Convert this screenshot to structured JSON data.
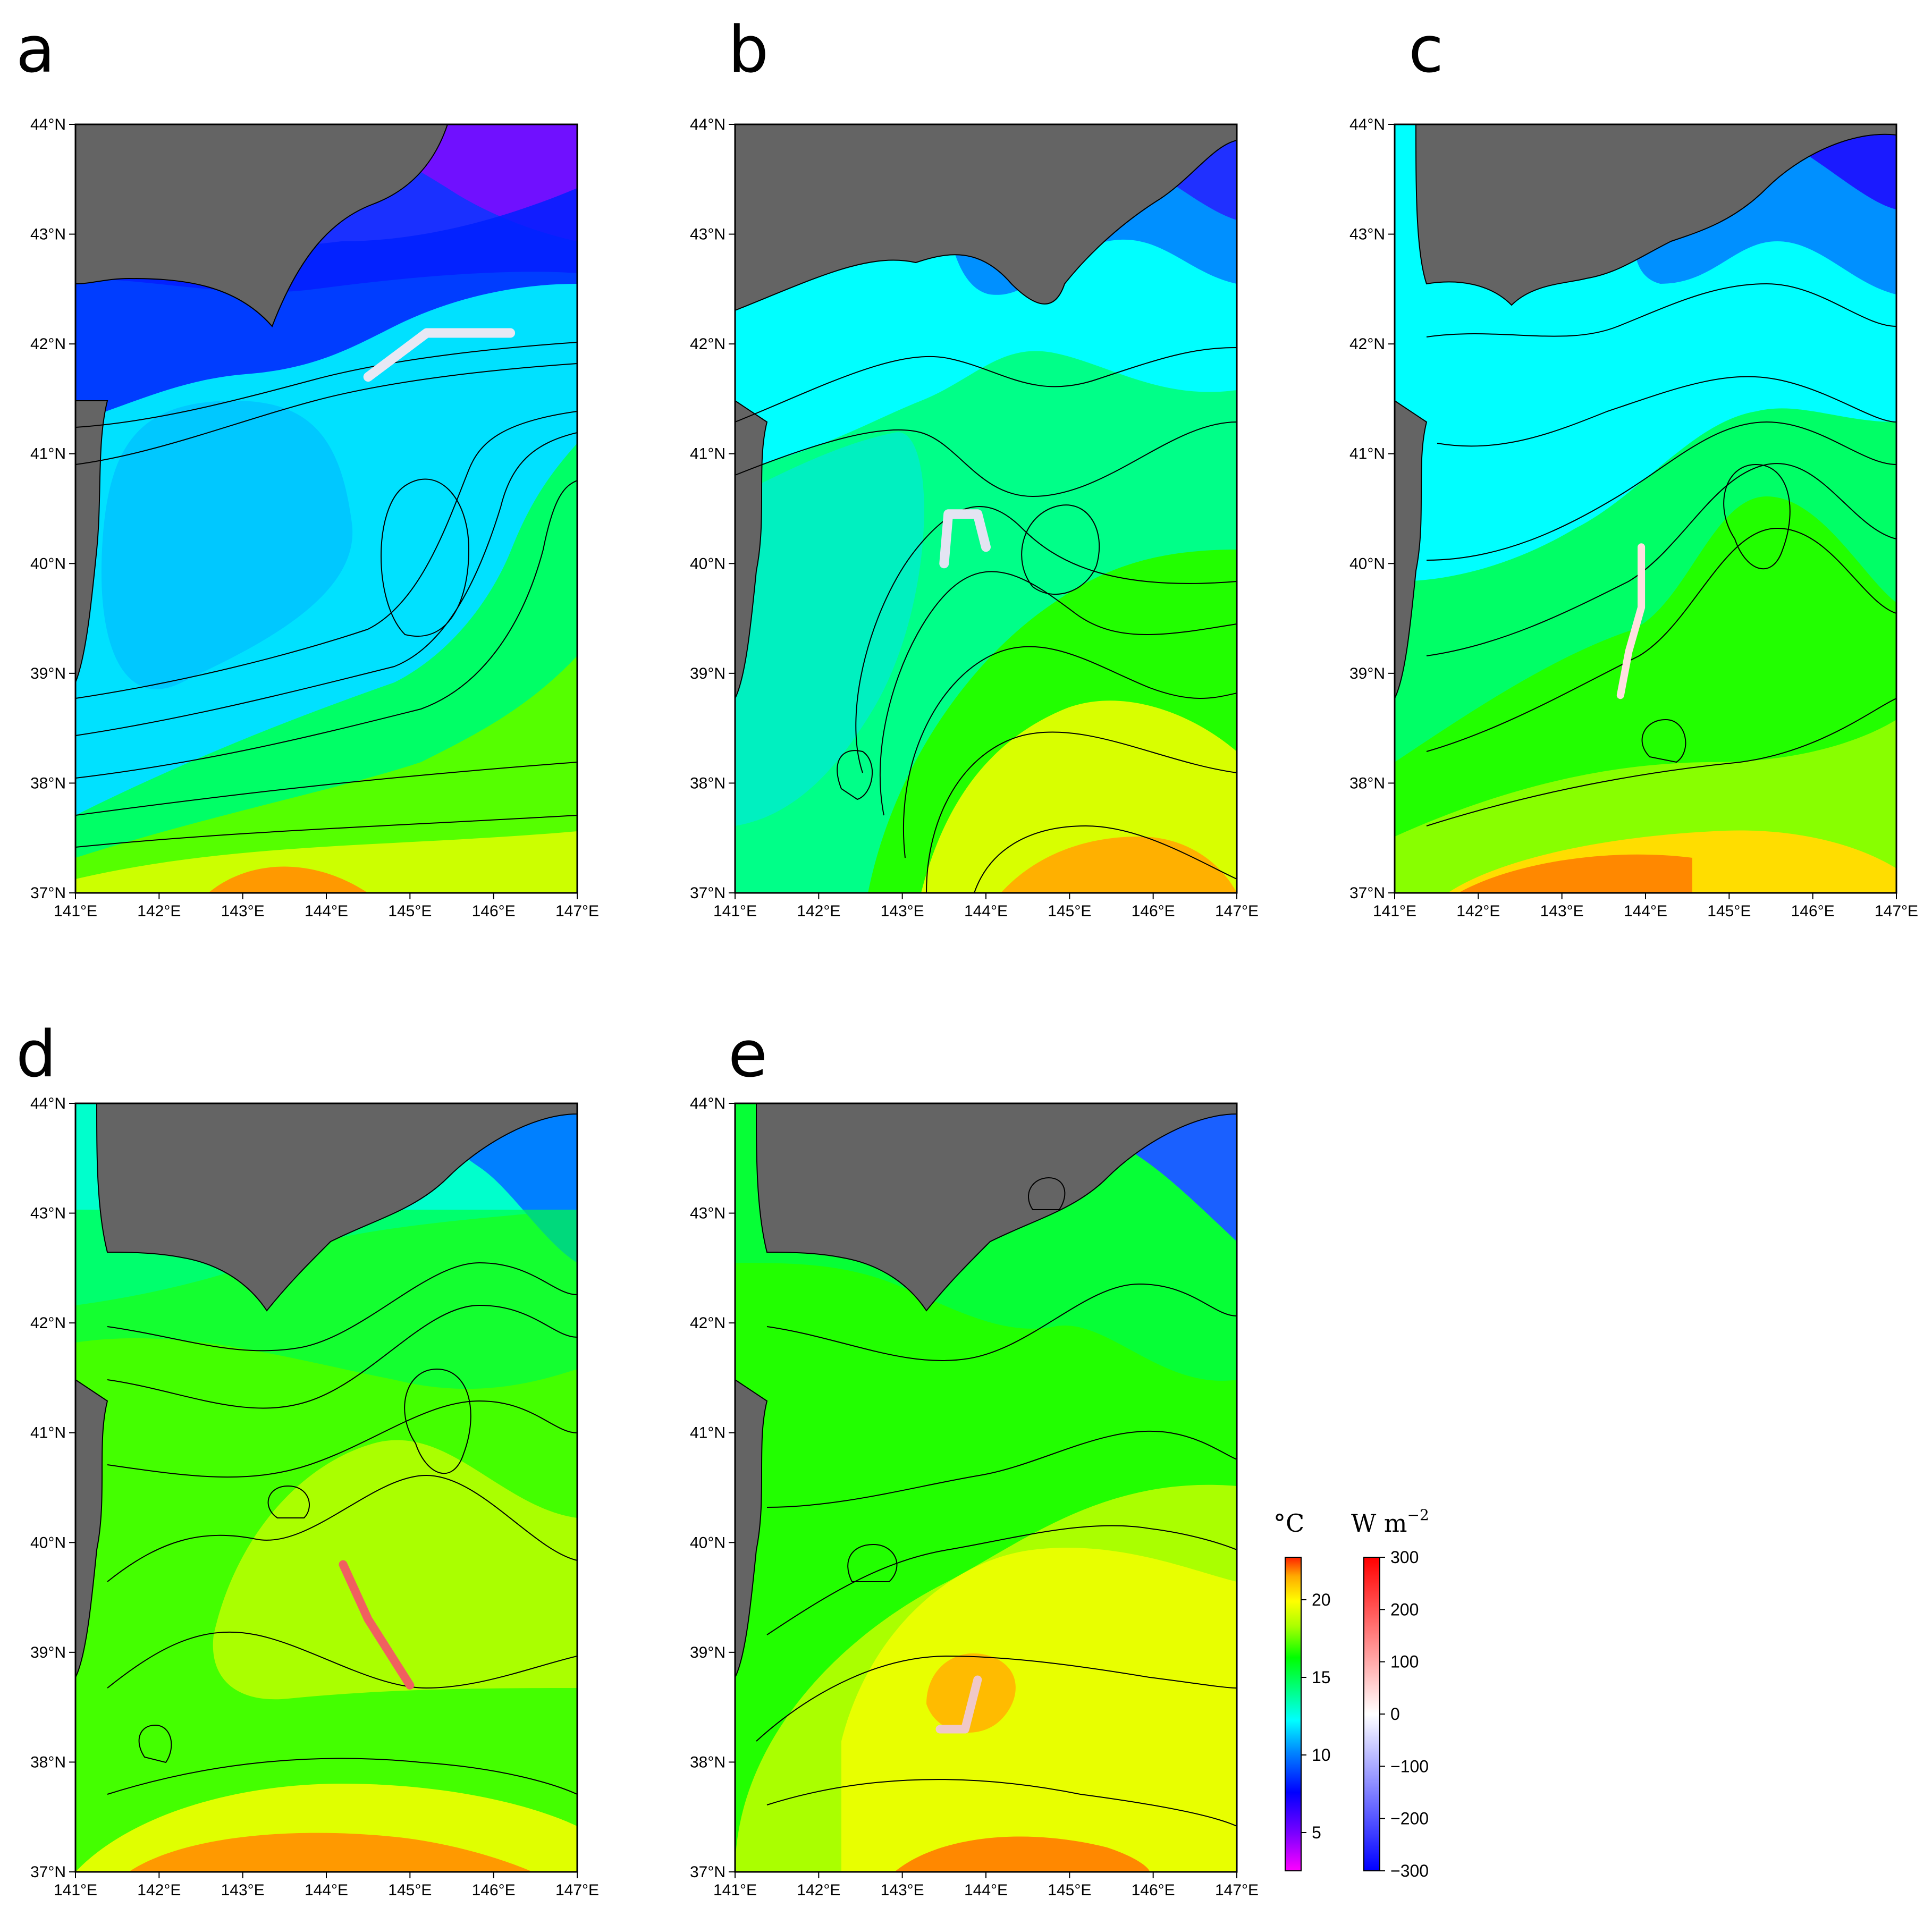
{
  "figure": {
    "panels": [
      {
        "id": "a",
        "label": "a"
      },
      {
        "id": "b",
        "label": "b"
      },
      {
        "id": "c",
        "label": "c"
      },
      {
        "id": "d",
        "label": "d"
      },
      {
        "id": "e",
        "label": "e"
      }
    ],
    "x_ticks": [
      "141°E",
      "142°E",
      "143°E",
      "144°E",
      "145°E",
      "146°E",
      "147°E"
    ],
    "y_ticks": [
      "44°N",
      "43°N",
      "42°N",
      "41°N",
      "40°N",
      "39°N",
      "38°N",
      "37°N"
    ],
    "colorbar_temp": {
      "unit": "°C",
      "ticks": [
        "20",
        "15",
        "10",
        "5"
      ]
    },
    "colorbar_flux": {
      "unit_main": "W m",
      "unit_exp": "−2",
      "ticks": [
        "300",
        "200",
        "100",
        "0",
        "−100",
        "−200",
        "−300"
      ]
    }
  },
  "map_extent": {
    "lon": [
      141,
      147
    ],
    "lat": [
      37,
      44
    ]
  },
  "colors": {
    "land": "#646464",
    "cold": "#1a1aff",
    "cyan": "#00ffff",
    "green": "#00ff00",
    "yellow": "#d9ff00",
    "orange": "#ff9900",
    "flux_pos": "#ff2020",
    "flux_neg": "#2020ff"
  },
  "tracks": [
    {
      "panel": "a",
      "points": [
        [
          144.5,
          41.7
        ],
        [
          145.2,
          42.1
        ],
        [
          146.2,
          42.1
        ]
      ]
    },
    {
      "panel": "b",
      "points": [
        [
          143.5,
          40.0
        ],
        [
          143.55,
          40.45
        ],
        [
          143.9,
          40.45
        ],
        [
          144.0,
          40.15
        ]
      ]
    },
    {
      "panel": "c",
      "points": [
        [
          143.7,
          38.8
        ],
        [
          143.8,
          39.2
        ],
        [
          143.95,
          39.6
        ],
        [
          143.95,
          40.15
        ]
      ]
    },
    {
      "panel": "d",
      "points": [
        [
          144.2,
          39.8
        ],
        [
          144.5,
          39.3
        ],
        [
          145.0,
          38.7
        ]
      ]
    },
    {
      "panel": "e",
      "points": [
        [
          143.9,
          38.75
        ],
        [
          143.75,
          38.3
        ],
        [
          143.45,
          38.3
        ]
      ]
    }
  ]
}
